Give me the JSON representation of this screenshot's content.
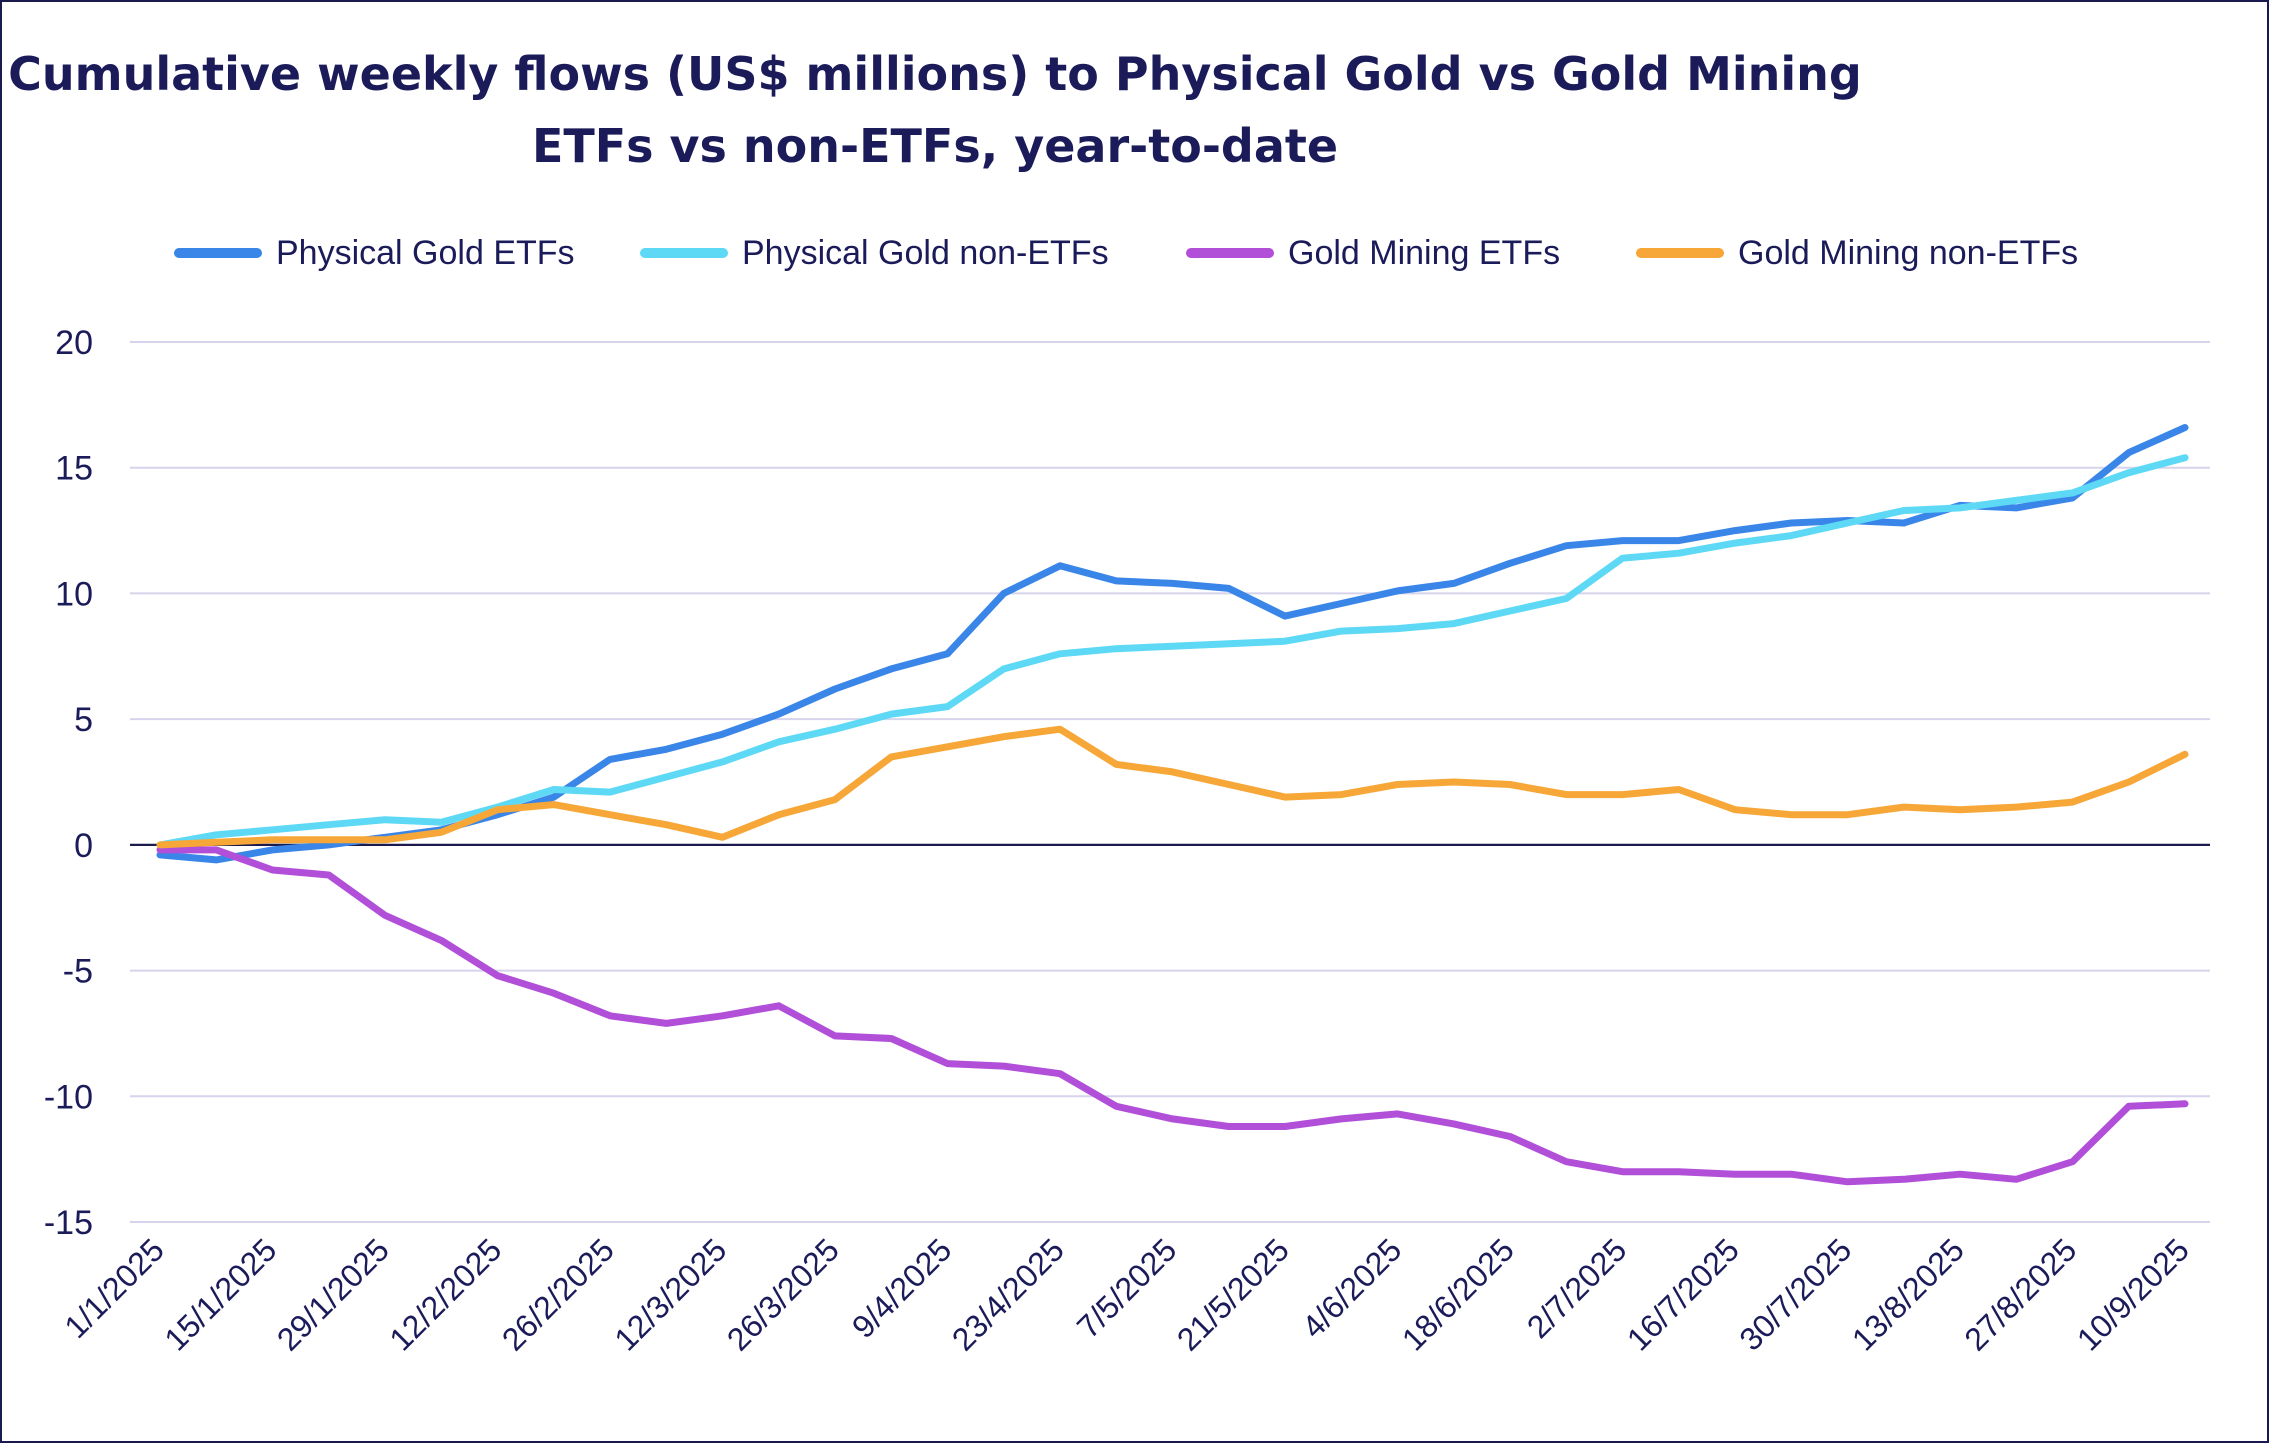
{
  "chart_data": {
    "type": "line",
    "title": "Cumulative weekly flows (US$ millions) to Physical Gold vs Gold Mining ETFs vs non-ETFs, year-to-date",
    "title_lines": [
      "Cumulative weekly flows (US$ millions) to Physical Gold vs Gold Mining",
      "ETFs vs non-ETFs, year-to-date"
    ],
    "xlabel": "",
    "ylabel": "",
    "ylim": [
      -15,
      20
    ],
    "yticks": [
      20,
      15,
      10,
      5,
      0,
      -5,
      -10,
      -15
    ],
    "grid": true,
    "legend_position": "top",
    "x": [
      "1/1/2025",
      "8/1/2025",
      "15/1/2025",
      "22/1/2025",
      "29/1/2025",
      "5/2/2025",
      "12/2/2025",
      "19/2/2025",
      "26/2/2025",
      "5/3/2025",
      "12/3/2025",
      "19/3/2025",
      "26/3/2025",
      "2/4/2025",
      "9/4/2025",
      "16/4/2025",
      "23/4/2025",
      "30/4/2025",
      "7/5/2025",
      "14/5/2025",
      "21/5/2025",
      "28/5/2025",
      "4/6/2025",
      "11/6/2025",
      "18/6/2025",
      "25/6/2025",
      "2/7/2025",
      "9/7/2025",
      "16/7/2025",
      "23/7/2025",
      "30/7/2025",
      "6/8/2025",
      "13/8/2025",
      "20/8/2025",
      "27/8/2025",
      "3/9/2025",
      "10/9/2025"
    ],
    "x_tick_labels": [
      "1/1/2025",
      "15/1/2025",
      "29/1/2025",
      "12/2/2025",
      "26/2/2025",
      "12/3/2025",
      "26/3/2025",
      "9/4/2025",
      "23/4/2025",
      "7/5/2025",
      "21/5/2025",
      "4/6/2025",
      "18/6/2025",
      "2/7/2025",
      "16/7/2025",
      "30/7/2025",
      "13/8/2025",
      "27/8/2025",
      "10/9/2025"
    ],
    "series": [
      {
        "name": "Physical Gold ETFs",
        "color": "#3a86e8",
        "values": [
          -0.4,
          -0.6,
          -0.2,
          0.0,
          0.3,
          0.6,
          1.2,
          1.9,
          3.4,
          3.8,
          4.4,
          5.2,
          6.2,
          7.0,
          7.6,
          10.0,
          11.1,
          10.5,
          10.4,
          10.2,
          9.1,
          9.6,
          10.1,
          10.4,
          11.2,
          11.9,
          12.1,
          12.1,
          12.5,
          12.8,
          12.9,
          12.8,
          13.5,
          13.4,
          13.8,
          15.6,
          16.6
        ]
      },
      {
        "name": "Physical Gold non-ETFs",
        "color": "#5dd9f5",
        "values": [
          0.0,
          0.4,
          0.6,
          0.8,
          1.0,
          0.9,
          1.5,
          2.2,
          2.1,
          2.7,
          3.3,
          4.1,
          4.6,
          5.2,
          5.5,
          7.0,
          7.6,
          7.8,
          7.9,
          8.0,
          8.1,
          8.5,
          8.6,
          8.8,
          9.3,
          9.8,
          11.4,
          11.6,
          12.0,
          12.3,
          12.8,
          13.3,
          13.4,
          13.7,
          14.0,
          14.8,
          15.4
        ]
      },
      {
        "name": "Gold Mining ETFs",
        "color": "#b14fd9",
        "values": [
          -0.2,
          -0.2,
          -1.0,
          -1.2,
          -2.8,
          -3.8,
          -5.2,
          -5.9,
          -6.8,
          -7.1,
          -6.8,
          -6.4,
          -7.6,
          -7.7,
          -8.7,
          -8.8,
          -9.1,
          -10.4,
          -10.9,
          -11.2,
          -11.2,
          -10.9,
          -10.7,
          -11.1,
          -11.6,
          -12.6,
          -13.0,
          -13.0,
          -13.1,
          -13.1,
          -13.4,
          -13.3,
          -13.1,
          -13.3,
          -12.6,
          -10.4,
          -10.3
        ]
      },
      {
        "name": "Gold Mining non-ETFs",
        "color": "#f7a738",
        "values": [
          0.0,
          0.1,
          0.2,
          0.2,
          0.2,
          0.5,
          1.4,
          1.6,
          1.2,
          0.8,
          0.3,
          1.2,
          1.8,
          3.5,
          3.9,
          4.3,
          4.6,
          3.2,
          2.9,
          2.4,
          1.9,
          2.0,
          2.4,
          2.5,
          2.4,
          2.0,
          2.0,
          2.2,
          1.4,
          1.2,
          1.2,
          1.5,
          1.4,
          1.5,
          1.7,
          2.5,
          3.6
        ]
      }
    ]
  }
}
